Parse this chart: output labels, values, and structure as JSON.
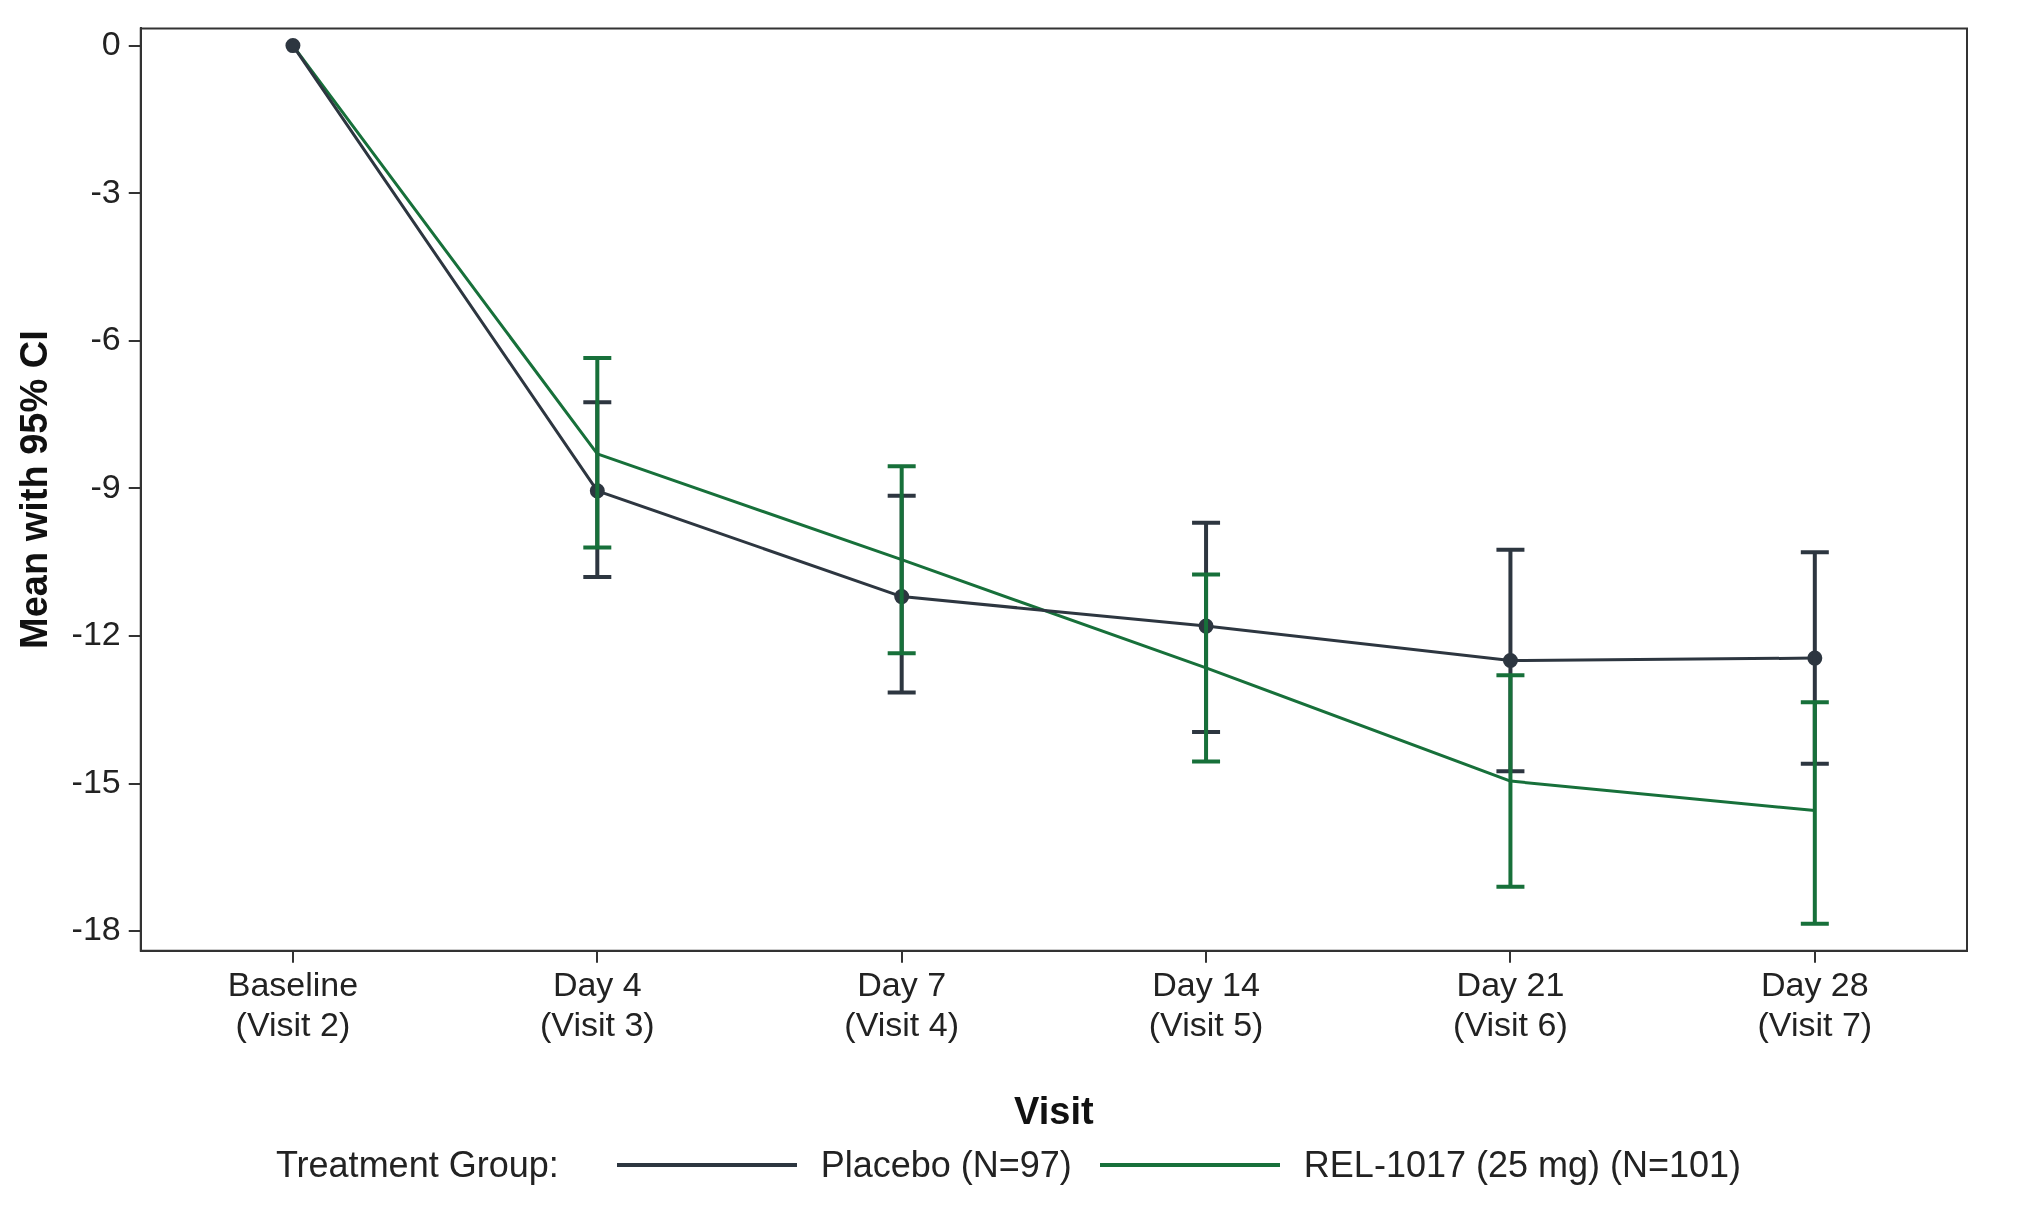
{
  "chart_data": {
    "type": "line",
    "xlabel": "Visit",
    "ylabel": "Mean with 95% CI",
    "legend_title": "Treatment Group:",
    "legend": "bottom",
    "grid": false,
    "categories": [
      "Baseline (Visit 2)",
      "Day 4 (Visit 3)",
      "Day 7 (Visit 4)",
      "Day 14 (Visit 5)",
      "Day 21 (Visit 6)",
      "Day 28 (Visit 7)"
    ],
    "ylim": [
      -18.4,
      0.35
    ],
    "yticks": [
      0,
      -3,
      -6,
      -9,
      -12,
      -15,
      -18
    ],
    "series": [
      {
        "name": "Placebo (N=97)",
        "color": "#2d3640",
        "marker": "circle",
        "values": [
          0,
          -9.05,
          -11.2,
          -11.8,
          -12.5,
          -12.45
        ],
        "errors": [
          null,
          [
            -10.8,
            -7.25
          ],
          [
            -13.15,
            -9.15
          ],
          [
            -13.95,
            -9.7
          ],
          [
            -14.75,
            -10.25
          ],
          [
            -14.6,
            -10.3
          ]
        ]
      },
      {
        "name": "REL-1017 (25 mg) (N=101)",
        "color": "#17703a",
        "marker": "none",
        "values": [
          0,
          -8.3,
          -10.45,
          -12.65,
          -14.95,
          -15.55
        ],
        "errors": [
          null,
          [
            -10.2,
            -6.35
          ],
          [
            -12.35,
            -8.55
          ],
          [
            -14.55,
            -10.75
          ],
          [
            -17.1,
            -12.8
          ],
          [
            -17.85,
            -13.35
          ]
        ]
      }
    ]
  }
}
